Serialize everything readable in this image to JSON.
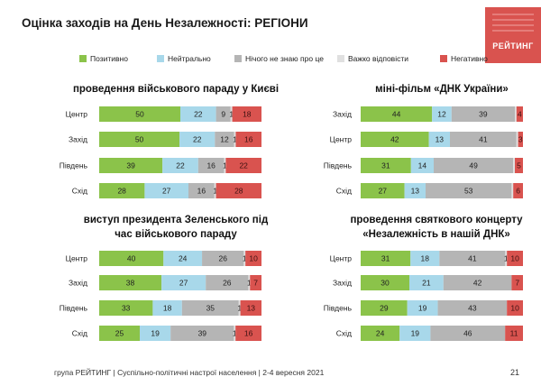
{
  "page": {
    "title": "Оцінка заходів на День Незалежності: РЕГІОНИ",
    "footer": "група РЕЙТИНГ | Суспільно-політичні настрої населення  | 2-4 вересня 2021",
    "page_number": "21",
    "logo_text": "РЕЙТИНГ"
  },
  "colors": {
    "positive": "#8bc34a",
    "neutral": "#a8d8ea",
    "dont_know": "#b5b5b5",
    "hard_to_say": "#e0e0e0",
    "negative": "#d9534f"
  },
  "legend": [
    {
      "label": "Позитивно",
      "color_key": "positive"
    },
    {
      "label": "Нейтрально",
      "color_key": "neutral"
    },
    {
      "label": "Нічого не знаю про це",
      "color_key": "dont_know"
    },
    {
      "label": "Важко відповісти",
      "color_key": "hard_to_say"
    },
    {
      "label": "Негативно",
      "color_key": "negative"
    }
  ],
  "chart_data": [
    {
      "type": "bar",
      "stacked": true,
      "orientation": "horizontal",
      "title": [
        "проведення військового параду у Києві"
      ],
      "categories": [
        "Центр",
        "Захід",
        "Південь",
        "Схід"
      ],
      "series": [
        {
          "name": "Позитивно",
          "values": [
            50,
            50,
            39,
            28
          ]
        },
        {
          "name": "Нейтрально",
          "values": [
            22,
            22,
            22,
            27
          ]
        },
        {
          "name": "Нічого не знаю про це",
          "values": [
            9,
            12,
            16,
            16
          ]
        },
        {
          "name": "Важко відповісти",
          "values": [
            1,
            1,
            1,
            1
          ]
        },
        {
          "name": "Негативно",
          "values": [
            18,
            16,
            22,
            28
          ]
        }
      ],
      "labels": [
        [
          "50",
          "22",
          "9",
          "1",
          "18"
        ],
        [
          "50",
          "22",
          "12",
          "1",
          "16"
        ],
        [
          "39",
          "22",
          "16",
          "1",
          "22"
        ],
        [
          "28",
          "27",
          "16",
          "1",
          "28"
        ]
      ]
    },
    {
      "type": "bar",
      "stacked": true,
      "orientation": "horizontal",
      "title": [
        "міні-фільм «ДНК України»"
      ],
      "categories": [
        "Захід",
        "Центр",
        "Південь",
        "Схід"
      ],
      "series": [
        {
          "name": "Позитивно",
          "values": [
            44,
            42,
            31,
            27
          ]
        },
        {
          "name": "Нейтрально",
          "values": [
            12,
            13,
            14,
            13
          ]
        },
        {
          "name": "Нічого не знаю про це",
          "values": [
            39,
            41,
            49,
            53
          ]
        },
        {
          "name": "Важко відповісти",
          "values": [
            1,
            1,
            1,
            1
          ]
        },
        {
          "name": "Негативно",
          "values": [
            4,
            3,
            5,
            6
          ]
        }
      ],
      "labels": [
        [
          "44",
          "12",
          "39",
          "",
          "4"
        ],
        [
          "42",
          "13",
          "41",
          "",
          "3"
        ],
        [
          "31",
          "14",
          "49",
          "",
          "5"
        ],
        [
          "27",
          "13",
          "53",
          "",
          "6"
        ]
      ]
    },
    {
      "type": "bar",
      "stacked": true,
      "orientation": "horizontal",
      "title": [
        "виступ президента Зеленського під",
        "час військового параду"
      ],
      "categories": [
        "Центр",
        "Захід",
        "Південь",
        "Схід"
      ],
      "series": [
        {
          "name": "Позитивно",
          "values": [
            40,
            38,
            33,
            25
          ]
        },
        {
          "name": "Нейтрально",
          "values": [
            24,
            27,
            18,
            19
          ]
        },
        {
          "name": "Нічого не знаю про це",
          "values": [
            26,
            26,
            35,
            39
          ]
        },
        {
          "name": "Важко відповісти",
          "values": [
            1,
            1,
            1,
            1
          ]
        },
        {
          "name": "Негативно",
          "values": [
            10,
            7,
            13,
            16
          ]
        }
      ],
      "labels": [
        [
          "40",
          "24",
          "26",
          "1",
          "10"
        ],
        [
          "38",
          "27",
          "26",
          "1",
          "7"
        ],
        [
          "33",
          "18",
          "35",
          "1",
          "13"
        ],
        [
          "25",
          "19",
          "39",
          "1",
          "16"
        ]
      ]
    },
    {
      "type": "bar",
      "stacked": true,
      "orientation": "horizontal",
      "title": [
        "проведення святкового концерту",
        "«Незалежність в нашій ДНК»"
      ],
      "categories": [
        "Центр",
        "Захід",
        "Південь",
        "Схід"
      ],
      "series": [
        {
          "name": "Позитивно",
          "values": [
            31,
            30,
            29,
            24
          ]
        },
        {
          "name": "Нейтрально",
          "values": [
            18,
            21,
            19,
            19
          ]
        },
        {
          "name": "Нічого не знаю про це",
          "values": [
            41,
            42,
            43,
            46
          ]
        },
        {
          "name": "Важко відповісти",
          "values": [
            1,
            0,
            0,
            0
          ]
        },
        {
          "name": "Негативно",
          "values": [
            10,
            7,
            10,
            11
          ]
        }
      ],
      "labels": [
        [
          "31",
          "18",
          "41",
          "1",
          "10"
        ],
        [
          "30",
          "21",
          "42",
          "",
          "7"
        ],
        [
          "29",
          "19",
          "43",
          "",
          "10"
        ],
        [
          "24",
          "19",
          "46",
          "",
          "11"
        ]
      ]
    }
  ]
}
